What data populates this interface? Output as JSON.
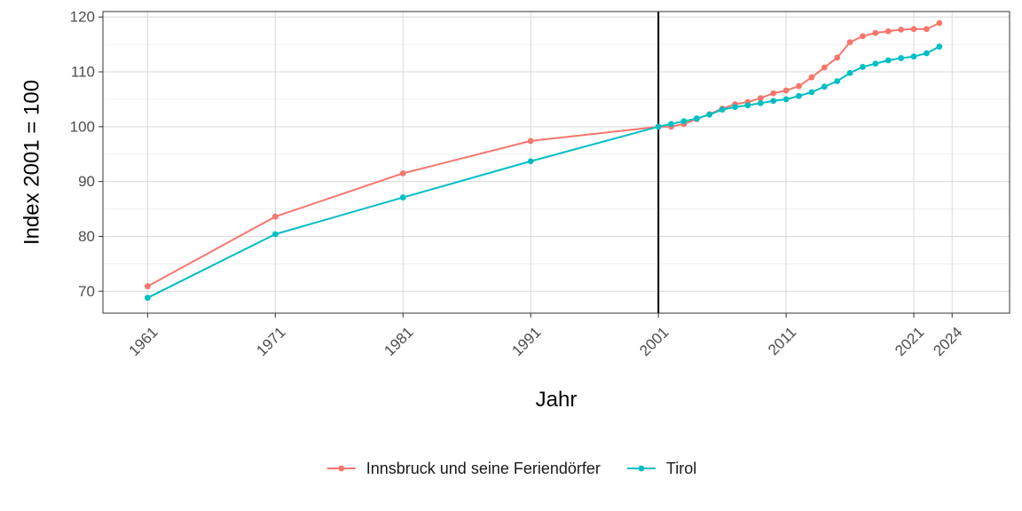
{
  "chart_data": {
    "type": "line",
    "xlabel": "Jahr",
    "ylabel": "Index 2001 = 100",
    "xlim": [
      1957.5,
      2028.5
    ],
    "ylim": [
      66,
      121
    ],
    "x_ticks": [
      1961,
      1971,
      1981,
      1991,
      2001,
      2011,
      2021,
      2024
    ],
    "x_tick_labels": [
      "1961",
      "1971",
      "1981",
      "1991",
      "2001",
      "2011",
      "2021",
      "2024"
    ],
    "y_ticks": [
      70,
      80,
      90,
      100,
      110,
      120
    ],
    "y_tick_labels": [
      "70",
      "80",
      "90",
      "100",
      "110",
      "120"
    ],
    "reference_line_x": 2001,
    "grid": true,
    "legend_position": "bottom",
    "series": [
      {
        "name": "Innsbruck und seine Feriendörfer",
        "color": "#F8766D",
        "x": [
          1961,
          1971,
          1981,
          1991,
          2001,
          2002,
          2003,
          2004,
          2005,
          2006,
          2007,
          2008,
          2009,
          2010,
          2011,
          2012,
          2013,
          2014,
          2015,
          2016,
          2017,
          2018,
          2019,
          2020,
          2021,
          2022,
          2023
        ],
        "values": [
          70.9,
          83.6,
          91.5,
          97.4,
          100.0,
          100.0,
          100.5,
          101.4,
          102.3,
          103.3,
          104.1,
          104.5,
          105.2,
          106.1,
          106.6,
          107.4,
          109.0,
          110.8,
          112.6,
          115.4,
          116.5,
          117.1,
          117.4,
          117.7,
          117.8,
          117.8,
          118.9
        ]
      },
      {
        "name": "Tirol",
        "color": "#00BFC4",
        "x": [
          1961,
          1971,
          1981,
          1991,
          2001,
          2002,
          2003,
          2004,
          2005,
          2006,
          2007,
          2008,
          2009,
          2010,
          2011,
          2012,
          2013,
          2014,
          2015,
          2016,
          2017,
          2018,
          2019,
          2020,
          2021,
          2022,
          2023
        ],
        "values": [
          68.8,
          80.4,
          87.1,
          93.7,
          100.0,
          100.5,
          101.0,
          101.5,
          102.2,
          103.1,
          103.6,
          103.9,
          104.3,
          104.7,
          105.0,
          105.6,
          106.3,
          107.3,
          108.3,
          109.8,
          110.9,
          111.5,
          112.1,
          112.5,
          112.8,
          113.4,
          114.6
        ]
      }
    ]
  }
}
